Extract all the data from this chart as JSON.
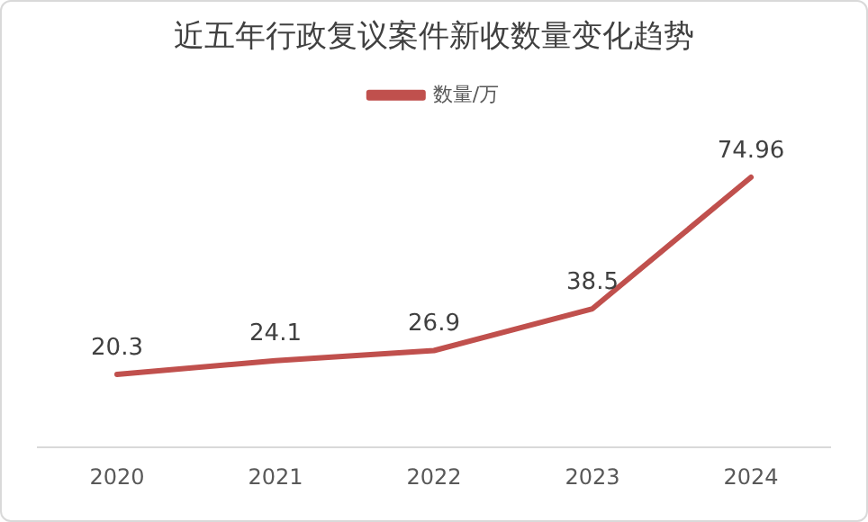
{
  "chart_data": {
    "type": "line",
    "title": "近五年行政复议案件新收数量变化趋势",
    "categories": [
      "2020",
      "2021",
      "2022",
      "2023",
      "2024"
    ],
    "series": [
      {
        "name": "数量/万",
        "color": "#c0504d",
        "values": [
          20.3,
          24.1,
          26.9,
          38.5,
          74.96
        ]
      }
    ],
    "tick_labels": "x",
    "data_labels": true,
    "legend": "top",
    "marker": "none",
    "line_style": "solid",
    "grid": false
  }
}
